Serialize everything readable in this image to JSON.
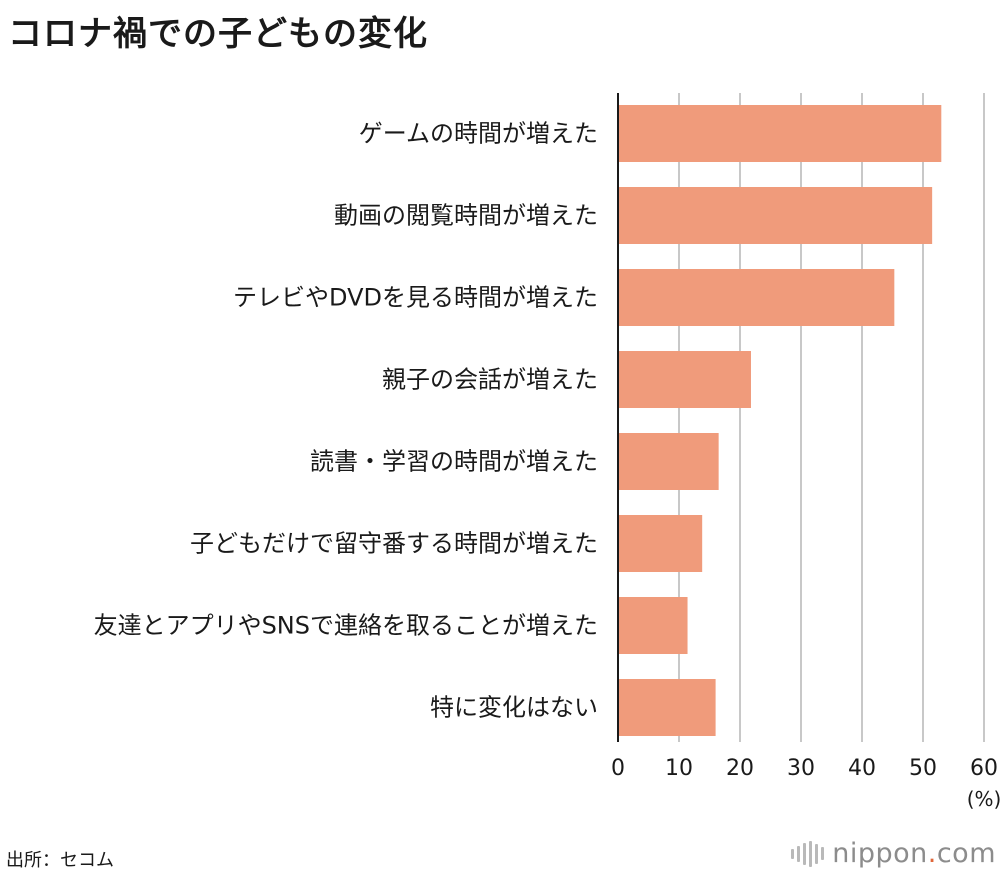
{
  "title": "コロナ禍での子どもの変化",
  "source": "出所：セコム",
  "brand": {
    "name": "nippon",
    "dot": ".",
    "suffix": "com",
    "icon": "sound-wave-icon",
    "text_color": "#8c8c8c",
    "dot_color": "#e0673a"
  },
  "chart_data": {
    "type": "bar",
    "orientation": "horizontal",
    "title": "コロナ禍での子どもの変化",
    "categories": [
      "ゲームの時間が増えた",
      "動画の閲覧時間が増えた",
      "テレビやDVDを見る時間が増えた",
      "親子の会話が増えた",
      "読書・学習の時間が増えた",
      "子どもだけで留守番する時間が増えた",
      "友達とアプリやSNSで連絡を取ることが増えた",
      "特に変化はない"
    ],
    "values": [
      53,
      51.5,
      45.3,
      21.8,
      16.5,
      13.8,
      11.4,
      16
    ],
    "xlim": [
      0,
      60
    ],
    "xticks": [
      "0",
      "10",
      "20",
      "30",
      "40",
      "50",
      "60"
    ],
    "unit_label": "(%)",
    "grid": true,
    "bar_color": "#f09b7b",
    "grid_color": "#c8c8c8"
  }
}
